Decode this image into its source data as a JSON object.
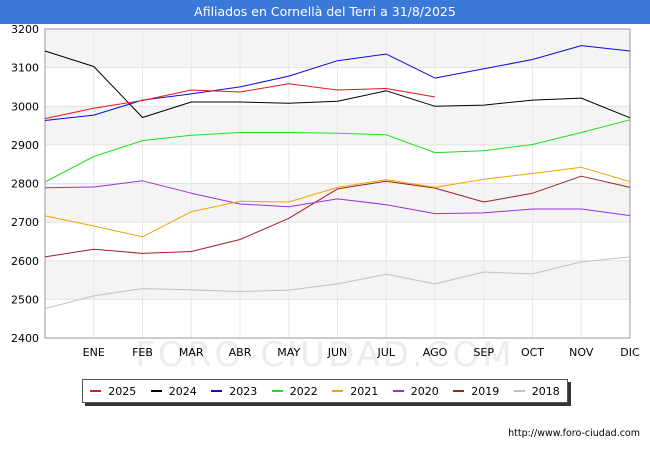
{
  "header": {
    "title": "Afiliados en Cornellà del Terri a 31/8/2025"
  },
  "footer": {
    "source": "http://www.foro-ciudad.com"
  },
  "watermark": "FORO-CIUDAD.COM",
  "chart_data": {
    "type": "line",
    "categories": [
      "",
      "ENE",
      "FEB",
      "MAR",
      "ABR",
      "MAY",
      "JUN",
      "JUL",
      "AGO",
      "SEP",
      "OCT",
      "NOV",
      "DIC"
    ],
    "ylim": [
      2400,
      3200
    ],
    "yticks": [
      2400,
      2500,
      2600,
      2700,
      2800,
      2900,
      3000,
      3100,
      3200
    ],
    "grid": true,
    "legend_position": "bottom",
    "series": [
      {
        "name": "2025",
        "color": "#e8141b",
        "values": [
          2968,
          2995,
          3015,
          3042,
          3037,
          3058,
          3042,
          3046,
          3024,
          null,
          null,
          null,
          null
        ]
      },
      {
        "name": "2024",
        "color": "#000000",
        "values": [
          3143,
          3103,
          2971,
          3011,
          3011,
          3008,
          3013,
          3040,
          3000,
          3003,
          3016,
          3021,
          2970
        ]
      },
      {
        "name": "2023",
        "color": "#0a0ae0",
        "values": [
          2963,
          2977,
          3016,
          3032,
          3050,
          3078,
          3118,
          3135,
          3073,
          3097,
          3121,
          3157,
          3143
        ]
      },
      {
        "name": "2022",
        "color": "#1ee01e",
        "values": [
          2804,
          2870,
          2911,
          2925,
          2932,
          2932,
          2930,
          2926,
          2880,
          2885,
          2901,
          2932,
          2965
        ]
      },
      {
        "name": "2021",
        "color": "#f5a300",
        "values": [
          2716,
          2690,
          2662,
          2727,
          2754,
          2752,
          2790,
          2810,
          2790,
          2811,
          2826,
          2842,
          2805
        ]
      },
      {
        "name": "2020",
        "color": "#9b30e0",
        "values": [
          2789,
          2791,
          2807,
          2775,
          2747,
          2740,
          2760,
          2745,
          2722,
          2724,
          2734,
          2734,
          2717
        ]
      },
      {
        "name": "2019",
        "color": "#a02020",
        "values": [
          2610,
          2630,
          2619,
          2624,
          2655,
          2710,
          2786,
          2806,
          2788,
          2752,
          2775,
          2819,
          2790
        ]
      },
      {
        "name": "2018",
        "color": "#c0c0c0",
        "values": [
          2476,
          2509,
          2528,
          2525,
          2520,
          2524,
          2540,
          2565,
          2540,
          2571,
          2566,
          2597,
          2610
        ]
      }
    ]
  }
}
